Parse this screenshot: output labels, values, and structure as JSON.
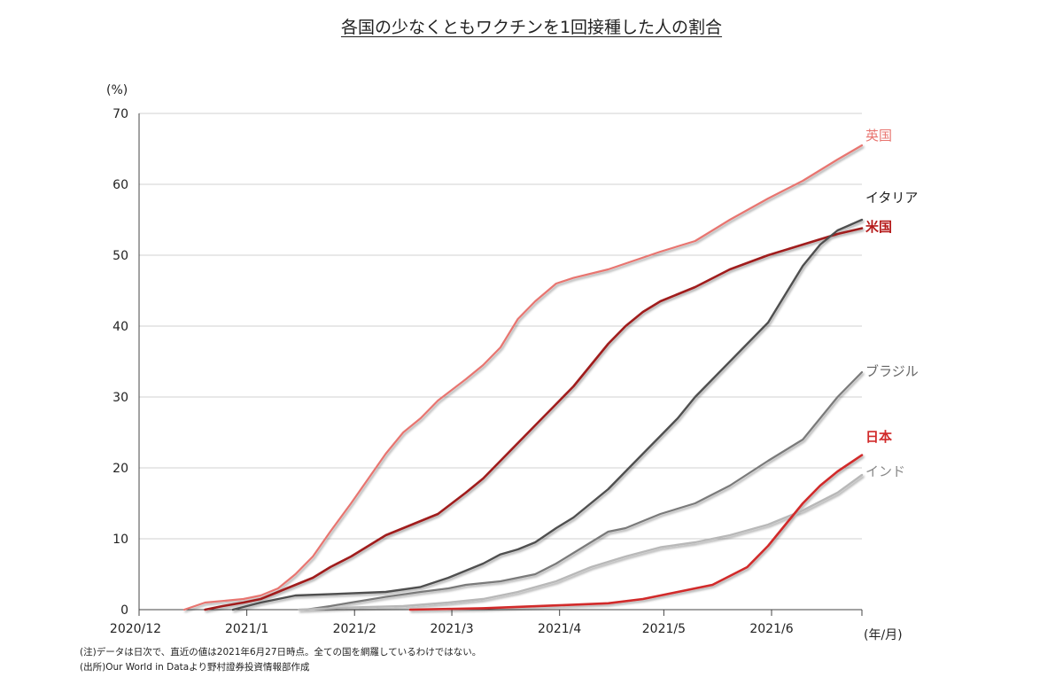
{
  "chart_data": {
    "type": "line",
    "title": "各国の少なくともワクチンを1回接種した人の割合",
    "y_unit_label": "(%)",
    "x_unit_label": "(年/月)",
    "ylim": [
      0,
      70
    ],
    "y_ticks": [
      "0",
      "10",
      "20",
      "30",
      "40",
      "50",
      "60",
      "70"
    ],
    "x_ticks": [
      {
        "label": "2020/12",
        "date": "2020-12-01"
      },
      {
        "label": "2021/1",
        "date": "2021-01-01"
      },
      {
        "label": "2021/2",
        "date": "2021-02-01"
      },
      {
        "label": "2021/3",
        "date": "2021-03-01"
      },
      {
        "label": "2021/4",
        "date": "2021-04-01"
      },
      {
        "label": "2021/5",
        "date": "2021-05-01"
      },
      {
        "label": "2021/6",
        "date": "2021-06-01"
      }
    ],
    "xlim": [
      "2020-12-01",
      "2021-06-27"
    ],
    "grid": "horizontal",
    "series": [
      {
        "name": "英国",
        "color": "#e87570",
        "label_color": "#e87570",
        "width": 2.2,
        "points": [
          [
            "2020-12-14",
            0
          ],
          [
            "2020-12-20",
            1
          ],
          [
            "2020-12-31",
            1.5
          ],
          [
            "2021-01-05",
            2
          ],
          [
            "2021-01-10",
            3
          ],
          [
            "2021-01-15",
            5
          ],
          [
            "2021-01-20",
            7.5
          ],
          [
            "2021-01-25",
            11
          ],
          [
            "2021-01-31",
            15
          ],
          [
            "2021-02-05",
            18.5
          ],
          [
            "2021-02-10",
            22
          ],
          [
            "2021-02-15",
            25
          ],
          [
            "2021-02-20",
            27
          ],
          [
            "2021-02-25",
            29.5
          ],
          [
            "2021-03-01",
            31
          ],
          [
            "2021-03-05",
            32.5
          ],
          [
            "2021-03-10",
            34.5
          ],
          [
            "2021-03-15",
            37
          ],
          [
            "2021-03-20",
            41
          ],
          [
            "2021-03-25",
            43.5
          ],
          [
            "2021-03-31",
            46
          ],
          [
            "2021-04-05",
            46.8
          ],
          [
            "2021-04-15",
            48
          ],
          [
            "2021-04-30",
            50.5
          ],
          [
            "2021-05-10",
            52
          ],
          [
            "2021-05-20",
            55
          ],
          [
            "2021-05-31",
            58
          ],
          [
            "2021-06-10",
            60.5
          ],
          [
            "2021-06-20",
            63.5
          ],
          [
            "2021-06-27",
            65.5
          ]
        ]
      },
      {
        "name": "米国",
        "color": "#a01c1c",
        "label_color": "#b51a1a",
        "width": 2.6,
        "points": [
          [
            "2020-12-20",
            0
          ],
          [
            "2020-12-25",
            0.5
          ],
          [
            "2020-12-31",
            1
          ],
          [
            "2021-01-05",
            1.5
          ],
          [
            "2021-01-10",
            2.5
          ],
          [
            "2021-01-15",
            3.5
          ],
          [
            "2021-01-20",
            4.5
          ],
          [
            "2021-01-25",
            6
          ],
          [
            "2021-01-31",
            7.5
          ],
          [
            "2021-02-05",
            9
          ],
          [
            "2021-02-10",
            10.5
          ],
          [
            "2021-02-15",
            11.5
          ],
          [
            "2021-02-20",
            12.5
          ],
          [
            "2021-02-25",
            13.5
          ],
          [
            "2021-03-01",
            15
          ],
          [
            "2021-03-05",
            16.5
          ],
          [
            "2021-03-10",
            18.5
          ],
          [
            "2021-03-15",
            21
          ],
          [
            "2021-03-20",
            23.5
          ],
          [
            "2021-03-25",
            26
          ],
          [
            "2021-03-31",
            29
          ],
          [
            "2021-04-05",
            31.5
          ],
          [
            "2021-04-10",
            34.5
          ],
          [
            "2021-04-15",
            37.5
          ],
          [
            "2021-04-20",
            40
          ],
          [
            "2021-04-25",
            42
          ],
          [
            "2021-04-30",
            43.5
          ],
          [
            "2021-05-10",
            45.5
          ],
          [
            "2021-05-20",
            48
          ],
          [
            "2021-05-31",
            50
          ],
          [
            "2021-06-10",
            51.5
          ],
          [
            "2021-06-20",
            53
          ],
          [
            "2021-06-27",
            53.8
          ]
        ]
      },
      {
        "name": "イタリア",
        "color": "#505050",
        "label_color": "#222222",
        "width": 2.4,
        "points": [
          [
            "2020-12-28",
            0
          ],
          [
            "2021-01-05",
            1
          ],
          [
            "2021-01-10",
            1.5
          ],
          [
            "2021-01-15",
            2
          ],
          [
            "2021-01-31",
            2.3
          ],
          [
            "2021-02-10",
            2.5
          ],
          [
            "2021-02-20",
            3.2
          ],
          [
            "2021-02-28",
            4.5
          ],
          [
            "2021-03-05",
            5.5
          ],
          [
            "2021-03-10",
            6.5
          ],
          [
            "2021-03-15",
            7.8
          ],
          [
            "2021-03-20",
            8.5
          ],
          [
            "2021-03-25",
            9.5
          ],
          [
            "2021-03-31",
            11.5
          ],
          [
            "2021-04-05",
            13
          ],
          [
            "2021-04-10",
            15
          ],
          [
            "2021-04-15",
            17
          ],
          [
            "2021-04-20",
            19.5
          ],
          [
            "2021-04-25",
            22
          ],
          [
            "2021-04-30",
            24.5
          ],
          [
            "2021-05-05",
            27
          ],
          [
            "2021-05-10",
            30
          ],
          [
            "2021-05-15",
            32.5
          ],
          [
            "2021-05-20",
            35
          ],
          [
            "2021-05-25",
            37.5
          ],
          [
            "2021-05-31",
            40.5
          ],
          [
            "2021-06-05",
            44.5
          ],
          [
            "2021-06-10",
            48.5
          ],
          [
            "2021-06-15",
            51.5
          ],
          [
            "2021-06-20",
            53.5
          ],
          [
            "2021-06-27",
            55
          ]
        ]
      },
      {
        "name": "ブラジル",
        "color": "#7a7a7a",
        "label_color": "#666666",
        "width": 2.2,
        "points": [
          [
            "2021-01-18",
            0
          ],
          [
            "2021-01-25",
            0.5
          ],
          [
            "2021-01-31",
            1
          ],
          [
            "2021-02-10",
            1.8
          ],
          [
            "2021-02-20",
            2.5
          ],
          [
            "2021-02-28",
            3
          ],
          [
            "2021-03-05",
            3.5
          ],
          [
            "2021-03-15",
            4
          ],
          [
            "2021-03-25",
            5
          ],
          [
            "2021-03-31",
            6.5
          ],
          [
            "2021-04-05",
            8
          ],
          [
            "2021-04-10",
            9.5
          ],
          [
            "2021-04-15",
            11
          ],
          [
            "2021-04-20",
            11.5
          ],
          [
            "2021-04-25",
            12.5
          ],
          [
            "2021-04-30",
            13.5
          ],
          [
            "2021-05-10",
            15
          ],
          [
            "2021-05-20",
            17.5
          ],
          [
            "2021-05-31",
            21
          ],
          [
            "2021-06-05",
            22.5
          ],
          [
            "2021-06-10",
            24
          ],
          [
            "2021-06-15",
            27
          ],
          [
            "2021-06-20",
            30
          ],
          [
            "2021-06-27",
            33.5
          ]
        ]
      },
      {
        "name": "インド",
        "color": "#b8b8b8",
        "label_color": "#888888",
        "width": 2.4,
        "points": [
          [
            "2021-01-16",
            0
          ],
          [
            "2021-01-31",
            0.3
          ],
          [
            "2021-02-15",
            0.5
          ],
          [
            "2021-02-28",
            1
          ],
          [
            "2021-03-10",
            1.5
          ],
          [
            "2021-03-20",
            2.5
          ],
          [
            "2021-03-31",
            4
          ],
          [
            "2021-04-10",
            6
          ],
          [
            "2021-04-20",
            7.5
          ],
          [
            "2021-04-30",
            8.8
          ],
          [
            "2021-05-10",
            9.5
          ],
          [
            "2021-05-20",
            10.5
          ],
          [
            "2021-05-31",
            12
          ],
          [
            "2021-06-10",
            14
          ],
          [
            "2021-06-20",
            16.5
          ],
          [
            "2021-06-27",
            19
          ]
        ]
      },
      {
        "name": "日本",
        "color": "#d12a2a",
        "label_color": "#d12a2a",
        "width": 2.6,
        "points": [
          [
            "2021-02-17",
            0
          ],
          [
            "2021-03-10",
            0.2
          ],
          [
            "2021-03-31",
            0.6
          ],
          [
            "2021-04-15",
            0.9
          ],
          [
            "2021-04-25",
            1.5
          ],
          [
            "2021-05-05",
            2.5
          ],
          [
            "2021-05-15",
            3.5
          ],
          [
            "2021-05-25",
            6
          ],
          [
            "2021-05-31",
            9
          ],
          [
            "2021-06-05",
            12
          ],
          [
            "2021-06-10",
            15
          ],
          [
            "2021-06-15",
            17.5
          ],
          [
            "2021-06-20",
            19.5
          ],
          [
            "2021-06-27",
            21.8
          ]
        ]
      }
    ]
  },
  "notes": [
    "(注)データは日次で、直近の値は2021年6月27日時点。全ての国を網羅しているわけではない。",
    "(出所)Our World in Dataより野村證券投資情報部作成"
  ]
}
